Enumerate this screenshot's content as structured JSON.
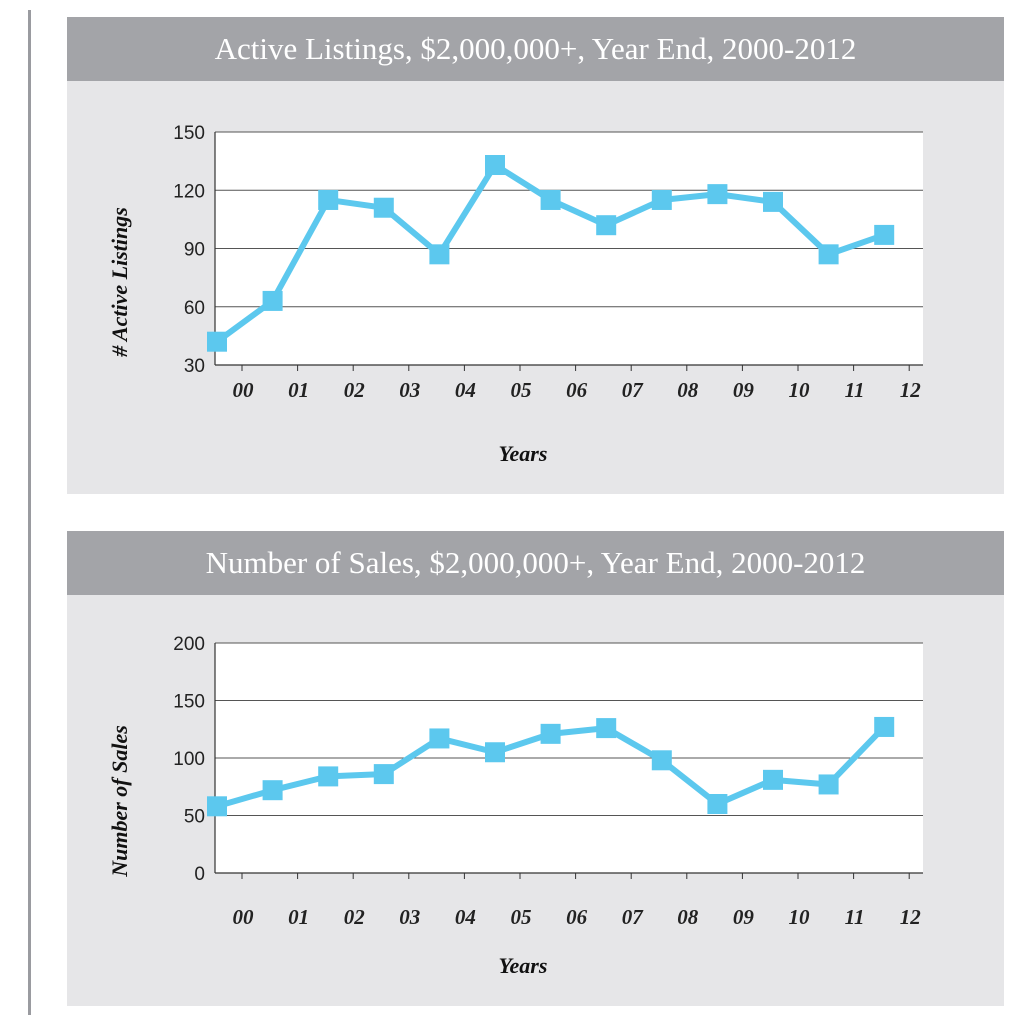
{
  "chart_data": [
    {
      "type": "line",
      "title": "Active Listings, $2,000,000+, Year End, 2000-2012",
      "xlabel": "Years",
      "ylabel": "# Active Listings",
      "categories": [
        "00",
        "01",
        "02",
        "03",
        "04",
        "05",
        "06",
        "07",
        "08",
        "09",
        "10",
        "11",
        "12"
      ],
      "values": [
        42,
        63,
        115,
        111,
        87,
        133,
        115,
        102,
        115,
        118,
        114,
        87,
        97
      ],
      "ylim": [
        30,
        150
      ],
      "yticks": [
        "30",
        "60",
        "90",
        "120",
        "150"
      ],
      "grid": "horizontal",
      "marker": "square",
      "color": "#5cc8ee"
    },
    {
      "type": "line",
      "title": "Number of Sales, $2,000,000+, Year End, 2000-2012",
      "xlabel": "Years",
      "ylabel": "Number of Sales",
      "categories": [
        "00",
        "01",
        "02",
        "03",
        "04",
        "05",
        "06",
        "07",
        "08",
        "09",
        "10",
        "11",
        "12"
      ],
      "values": [
        58,
        72,
        84,
        86,
        117,
        105,
        121,
        126,
        98,
        60,
        81,
        77,
        127
      ],
      "ylim": [
        0,
        200
      ],
      "yticks": [
        "0",
        "50",
        "100",
        "150",
        "200"
      ],
      "grid": "horizontal",
      "marker": "square",
      "color": "#5cc8ee"
    }
  ]
}
